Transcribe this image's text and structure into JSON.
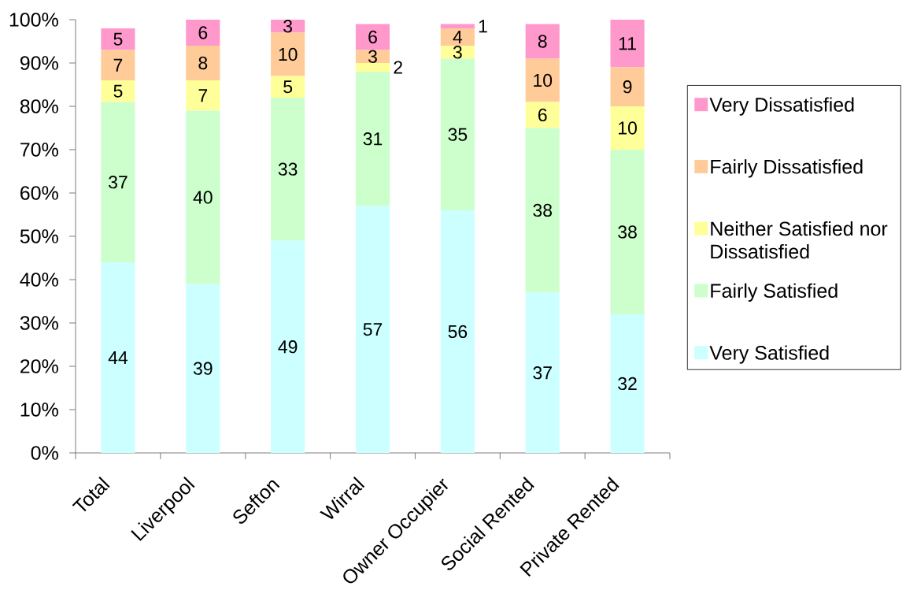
{
  "chart_data": {
    "type": "bar",
    "stacked": true,
    "categories": [
      "Total",
      "Liverpool",
      "Sefton",
      "Wirral",
      "Owner Occupier",
      "Social Rented",
      "Private Rented"
    ],
    "series": [
      {
        "name": "Very Satisfied",
        "color": "#ccffff",
        "values": [
          44,
          39,
          49,
          57,
          56,
          37,
          32
        ]
      },
      {
        "name": "Fairly Satisfied",
        "color": "#ccffcc",
        "values": [
          37,
          40,
          33,
          31,
          35,
          38,
          38
        ]
      },
      {
        "name": "Neither Satisfied nor Dissatisfied",
        "color": "#ffff99",
        "values": [
          5,
          7,
          5,
          2,
          3,
          6,
          10
        ]
      },
      {
        "name": "Fairly Dissatisfied",
        "color": "#ffcc99",
        "values": [
          7,
          8,
          10,
          3,
          4,
          10,
          9
        ]
      },
      {
        "name": "Very Dissatisfied",
        "color": "#ff99cc",
        "values": [
          5,
          6,
          3,
          6,
          1,
          8,
          11
        ]
      }
    ],
    "ylim": [
      0,
      100
    ],
    "yticks": [
      {
        "value": 0,
        "label": "0%"
      },
      {
        "value": 10,
        "label": "10%"
      },
      {
        "value": 20,
        "label": "20%"
      },
      {
        "value": 30,
        "label": "30%"
      },
      {
        "value": 40,
        "label": "40%"
      },
      {
        "value": 50,
        "label": "50%"
      },
      {
        "value": 60,
        "label": "60%"
      },
      {
        "value": 70,
        "label": "70%"
      },
      {
        "value": 80,
        "label": "80%"
      },
      {
        "value": 90,
        "label": "90%"
      },
      {
        "value": 100,
        "label": "100%"
      }
    ],
    "data_labels": true,
    "legend": "right"
  }
}
